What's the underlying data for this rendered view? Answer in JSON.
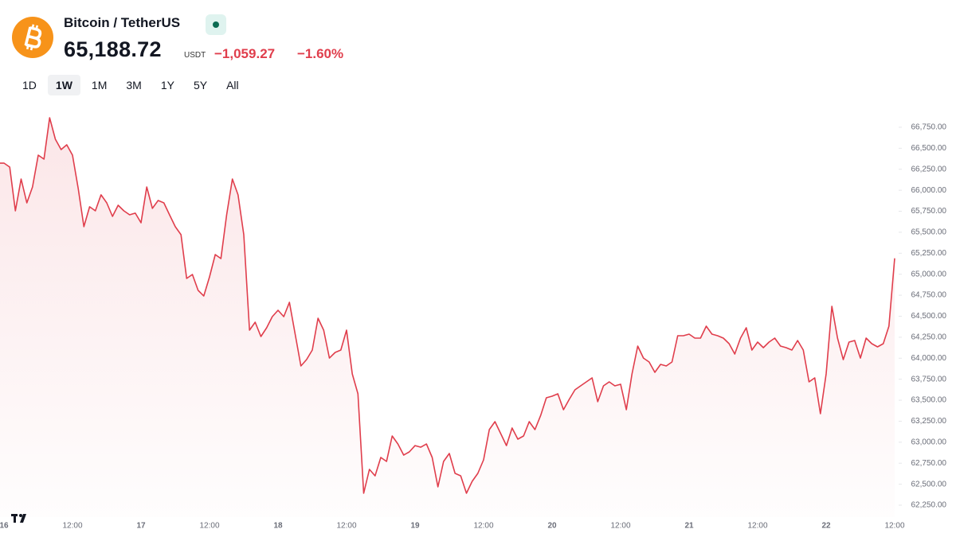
{
  "header": {
    "symbol": "Bitcoin / TetherUS",
    "price": "65,188.72",
    "currency": "USDT",
    "change": "−1,059.27",
    "change_percent": "−1.60%"
  },
  "ranges": [
    "1D",
    "1W",
    "1M",
    "3M",
    "1Y",
    "5Y",
    "All"
  ],
  "active_range": "1W",
  "chart_data": {
    "type": "area",
    "color": "#e03e4c",
    "categories": [
      "16",
      null,
      null,
      null,
      null,
      null,
      null,
      null,
      null,
      null,
      null,
      null,
      "12:00",
      null,
      null,
      null,
      null,
      null,
      null,
      null,
      null,
      null,
      null,
      null,
      "17",
      null,
      null,
      null,
      null,
      null,
      null,
      null,
      null,
      null,
      null,
      null,
      "12:00",
      null,
      null,
      null,
      null,
      null,
      null,
      null,
      null,
      null,
      null,
      null,
      "18",
      null,
      null,
      null,
      null,
      null,
      null,
      null,
      null,
      null,
      null,
      null,
      "12:00",
      null,
      null,
      null,
      null,
      null,
      null,
      null,
      null,
      null,
      null,
      null,
      "19",
      null,
      null,
      null,
      null,
      null,
      null,
      null,
      null,
      null,
      null,
      null,
      "12:00",
      null,
      null,
      null,
      null,
      null,
      null,
      null,
      null,
      null,
      null,
      null,
      "20",
      null,
      null,
      null,
      null,
      null,
      null,
      null,
      null,
      null,
      null,
      null,
      "12:00",
      null,
      null,
      null,
      null,
      null,
      null,
      null,
      null,
      null,
      null,
      null,
      "21",
      null,
      null,
      null,
      null,
      null,
      null,
      null,
      null,
      null,
      null,
      null,
      "12:00",
      null,
      null,
      null,
      null,
      null,
      null,
      null,
      null,
      null,
      null,
      null,
      "22",
      null,
      null,
      null,
      null,
      null,
      null,
      null,
      null,
      null,
      null,
      null,
      "12:00"
    ],
    "values": [
      66323,
      66276,
      65755,
      66134,
      65850,
      66039,
      66418,
      66371,
      66863,
      66607,
      66484,
      66541,
      66418,
      66020,
      65566,
      65803,
      65755,
      65945,
      65850,
      65689,
      65821,
      65755,
      65708,
      65727,
      65613,
      66039,
      65784,
      65878,
      65850,
      65708,
      65566,
      65471,
      64950,
      64997,
      64808,
      64741,
      64969,
      65234,
      65187,
      65708,
      66134,
      65945,
      65471,
      64334,
      64429,
      64258,
      64362,
      64495,
      64571,
      64495,
      64666,
      64287,
      63908,
      63984,
      64097,
      64476,
      64334,
      64002,
      64069,
      64097,
      64334,
      63813,
      63576,
      62392,
      62676,
      62600,
      62818,
      62771,
      63074,
      62979,
      62847,
      62885,
      62960,
      62941,
      62979,
      62818,
      62468,
      62771,
      62866,
      62629,
      62600,
      62392,
      62534,
      62629,
      62790,
      63150,
      63245,
      63103,
      62960,
      63169,
      63036,
      63074,
      63245,
      63150,
      63320,
      63529,
      63548,
      63576,
      63387,
      63510,
      63624,
      63671,
      63718,
      63766,
      63482,
      63671,
      63718,
      63671,
      63690,
      63387,
      63813,
      64145,
      64002,
      63955,
      63832,
      63927,
      63908,
      63955,
      64268,
      64268,
      64287,
      64239,
      64239,
      64381,
      64287,
      64268,
      64239,
      64173,
      64050,
      64239,
      64362,
      64097,
      64192,
      64126,
      64192,
      64239,
      64145,
      64126,
      64097,
      64211,
      64097,
      63718,
      63766,
      63339,
      63813,
      64618,
      64239,
      63984,
      64192,
      64211,
      64002,
      64239,
      64173,
      64135,
      64173,
      64381,
      65189
    ],
    "ylim": [
      62108,
      66939
    ],
    "yticks": [
      {
        "value": 62250,
        "label": "62,250.00"
      },
      {
        "value": 62500,
        "label": "62,500.00"
      },
      {
        "value": 62750,
        "label": "62,750.00"
      },
      {
        "value": 63000,
        "label": "63,000.00"
      },
      {
        "value": 63250,
        "label": "63,250.00"
      },
      {
        "value": 63500,
        "label": "63,500.00"
      },
      {
        "value": 63750,
        "label": "63,750.00"
      },
      {
        "value": 64000,
        "label": "64,000.00"
      },
      {
        "value": 64250,
        "label": "64,250.00"
      },
      {
        "value": 64500,
        "label": "64,500.00"
      },
      {
        "value": 64750,
        "label": "64,750.00"
      },
      {
        "value": 65000,
        "label": "65,000.00"
      },
      {
        "value": 65250,
        "label": "65,250.00"
      },
      {
        "value": 65500,
        "label": "65,500.00"
      },
      {
        "value": 65750,
        "label": "65,750.00"
      },
      {
        "value": 66000,
        "label": "66,000.00"
      },
      {
        "value": 66250,
        "label": "66,250.00"
      },
      {
        "value": 66500,
        "label": "66,500.00"
      },
      {
        "value": 66750,
        "label": "66,750.00"
      }
    ]
  }
}
